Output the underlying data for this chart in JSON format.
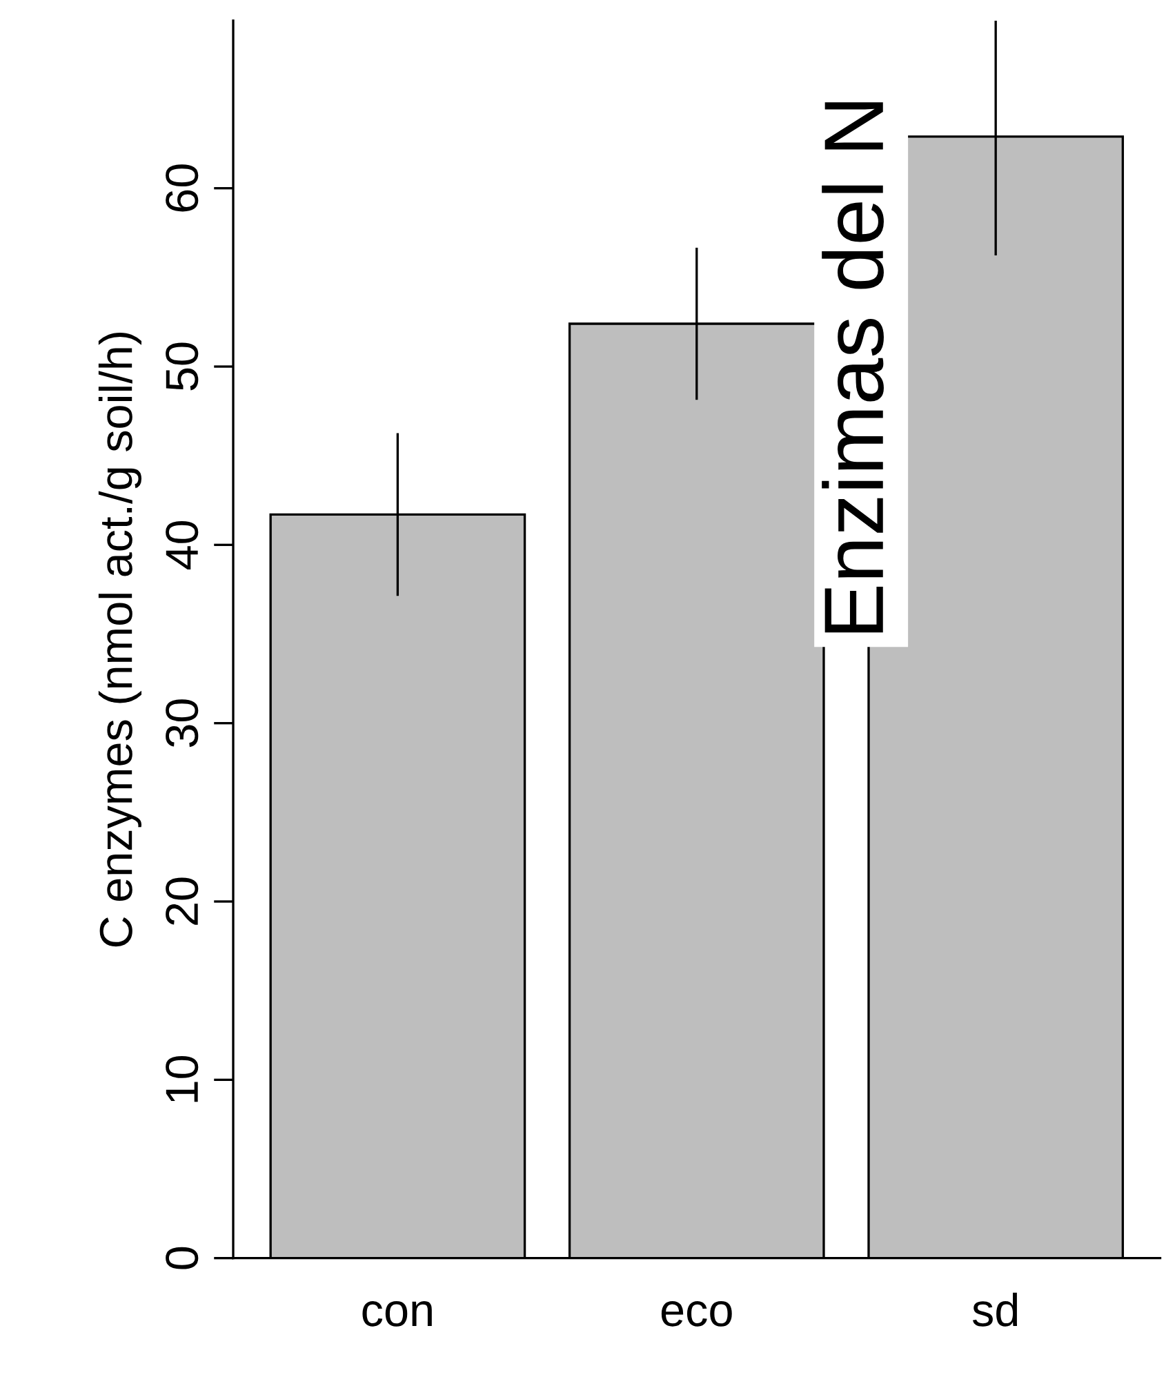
{
  "chart_data": {
    "type": "bar",
    "ylabel": "C enzymes (nmol act./g soil/h)",
    "categories": [
      "con",
      "eco",
      "sd"
    ],
    "values": [
      41.7,
      52.4,
      62.9
    ],
    "errors": [
      [
        37.2,
        46.2
      ],
      [
        48.2,
        56.6
      ],
      [
        56.3,
        69.4
      ]
    ],
    "color": "#bebebe",
    "ylim": [
      0,
      69.4
    ],
    "yticks": [
      0,
      10,
      20,
      30,
      40,
      50,
      60
    ],
    "annotations": [
      "Enzimas del N"
    ],
    "grid": false,
    "legend": false
  }
}
